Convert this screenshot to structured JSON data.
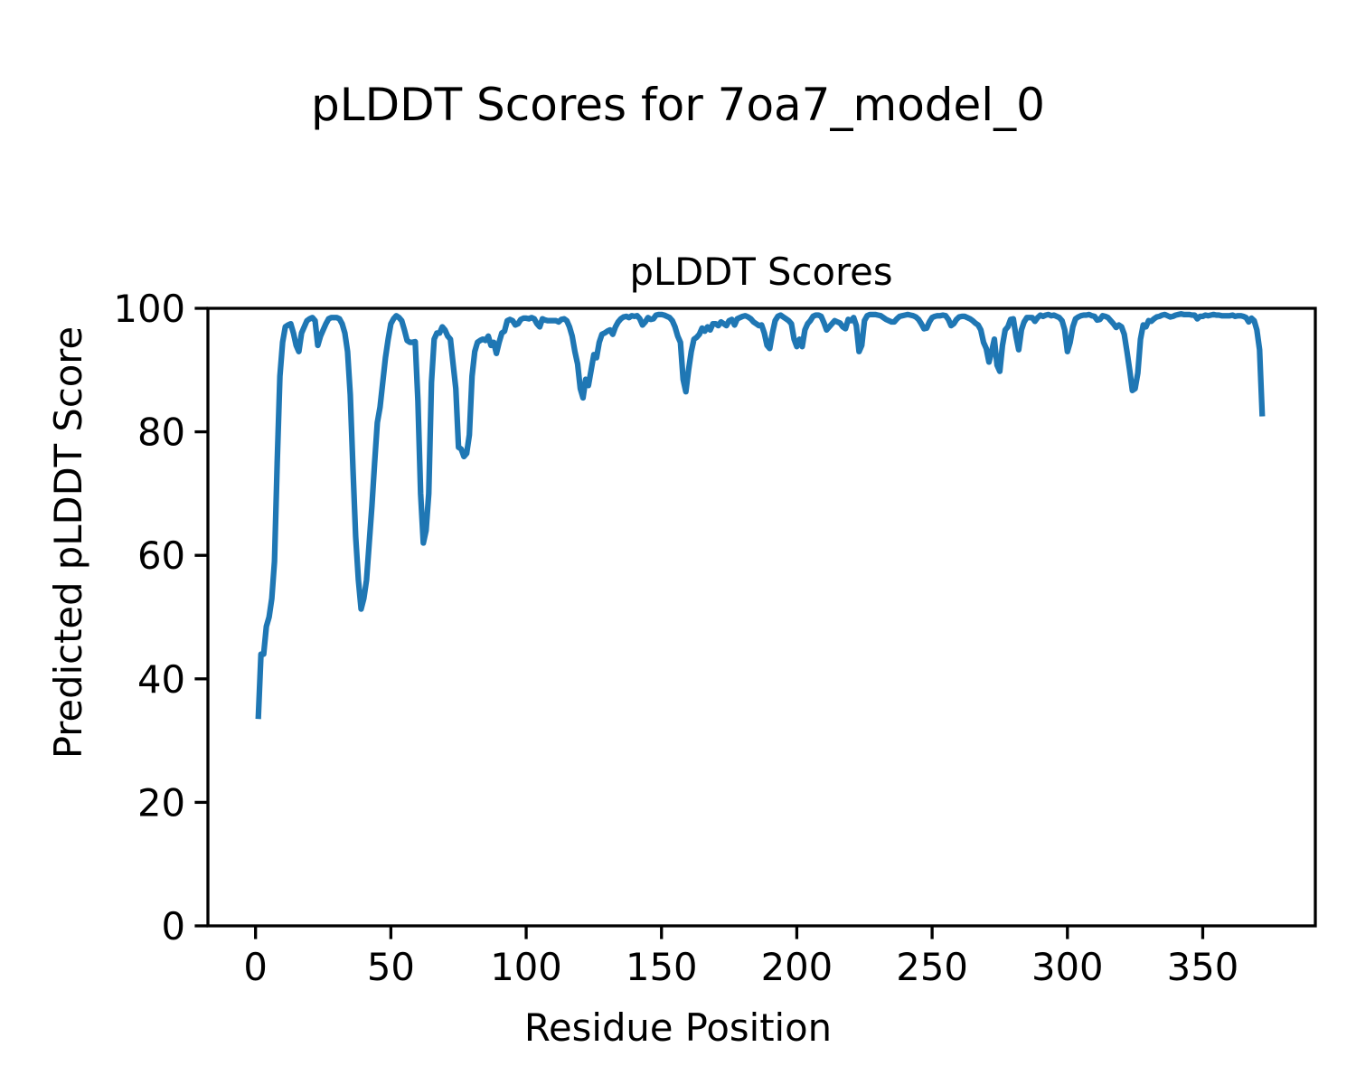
{
  "chart_data": {
    "type": "line",
    "suptitle": "pLDDT Scores for 7oa7_model_0",
    "title": "pLDDT Scores",
    "xlabel": "Residue Position",
    "ylabel": "Predicted pLDDT Score",
    "x_start": 1,
    "xlim": [
      -17.6,
      391.6
    ],
    "ylim": [
      0,
      100
    ],
    "xticks": [
      0,
      50,
      100,
      150,
      200,
      250,
      300,
      350
    ],
    "yticks": [
      0,
      20,
      40,
      60,
      80,
      100
    ],
    "grid": false,
    "color": "#1f77b4",
    "series": [
      {
        "name": "pLDDT",
        "values": [
          33.5,
          44,
          44,
          48.5,
          50,
          53,
          59,
          75,
          89,
          94.5,
          97,
          97.3,
          97.5,
          96,
          94,
          93,
          96,
          97,
          98,
          98.3,
          98.5,
          98,
          94,
          95.5,
          96.5,
          97.5,
          98.3,
          98.5,
          98.5,
          98.5,
          98.3,
          97.5,
          96,
          93,
          86,
          74,
          63,
          56,
          51.3,
          53,
          56,
          62,
          68,
          75,
          81.5,
          84,
          88,
          92,
          95,
          97.5,
          98.3,
          98.8,
          98.5,
          98,
          96.5,
          94.8,
          94.5,
          94.5,
          94.6,
          85,
          70,
          62,
          64,
          70,
          88,
          95,
          96,
          96,
          97,
          96.5,
          95.5,
          95,
          91,
          87,
          77.5,
          77.2,
          76,
          76.5,
          79.5,
          89,
          93,
          94.5,
          94.8,
          95,
          94.8,
          95.5,
          94,
          94.5,
          92.7,
          94.5,
          96,
          96.3,
          98,
          98.2,
          98,
          97.3,
          97.5,
          98.2,
          98.4,
          98.4,
          98.3,
          98.5,
          98.3,
          97.5,
          97,
          98.3,
          98.1,
          98,
          98,
          98,
          98,
          97.8,
          98.2,
          98.3,
          98,
          97,
          95.5,
          93,
          91,
          87,
          85.5,
          88.5,
          87.5,
          90,
          92.5,
          92,
          94.5,
          95.8,
          96,
          96.3,
          96.5,
          95.8,
          97,
          97.8,
          98.3,
          98.6,
          98.7,
          98.5,
          98.8,
          98.7,
          98.8,
          98.3,
          97.3,
          97.8,
          98.5,
          98.2,
          98.3,
          98.9,
          99,
          99,
          98.9,
          98.7,
          98.5,
          98,
          97,
          95.5,
          94.5,
          88.5,
          86.5,
          90,
          93,
          95,
          95.3,
          95.8,
          96.8,
          96.3,
          97,
          96.5,
          97.5,
          97.5,
          97.2,
          97.8,
          97.5,
          97.2,
          98,
          98.2,
          97.3,
          98.3,
          98.5,
          98.7,
          98.8,
          98.6,
          98.3,
          97.8,
          97.5,
          97.2,
          97.3,
          96,
          94,
          93.5,
          96,
          98,
          98.7,
          98.9,
          98.6,
          98.3,
          98,
          97.5,
          95,
          93.8,
          95,
          93.8,
          96.5,
          97.5,
          98,
          98.7,
          98.9,
          98.9,
          98.7,
          97.7,
          96.5,
          97,
          97.5,
          98,
          97.8,
          97.6,
          97,
          96.7,
          98.2,
          98,
          98.5,
          97.2,
          93,
          94,
          98,
          98.8,
          99,
          99,
          99,
          98.9,
          98.8,
          98.5,
          98.2,
          98,
          97.8,
          97.8,
          98.3,
          98.7,
          98.8,
          98.9,
          99,
          98.9,
          98.8,
          98.6,
          98.2,
          97.5,
          96.7,
          96.8,
          97.8,
          98.5,
          98.7,
          98.8,
          98.8,
          98.9,
          98.8,
          98.2,
          97.2,
          97.5,
          98.2,
          98.6,
          98.7,
          98.7,
          98.5,
          98.3,
          98,
          97.6,
          97.3,
          96.5,
          94.5,
          93.5,
          91.3,
          93,
          95,
          90.8,
          89.8,
          94,
          96.5,
          97,
          98.2,
          98.3,
          95.5,
          93.3,
          96.5,
          97.8,
          98.5,
          98.5,
          98.5,
          97.9,
          98.5,
          98.9,
          98.7,
          98.9,
          99,
          98.8,
          98.9,
          98.7,
          98.5,
          98,
          96.5,
          93,
          94.5,
          97,
          98.3,
          98.6,
          98.8,
          98.9,
          98.9,
          99,
          98.8,
          98.7,
          98.1,
          98.2,
          98.8,
          98.7,
          98.5,
          98,
          97.5,
          96.9,
          97.3,
          97,
          95.8,
          93,
          90,
          86.7,
          87,
          89.5,
          95,
          97.3,
          97,
          98,
          97.9,
          98.3,
          98.6,
          98.7,
          98.9,
          99,
          98.8,
          98.6,
          98.7,
          98.9,
          99,
          99.1,
          99,
          99,
          99,
          98.9,
          98.9,
          98.3,
          98.7,
          98.7,
          98.9,
          98.8,
          98.9,
          99,
          98.9,
          98.9,
          98.8,
          98.8,
          98.8,
          98.8,
          98.9,
          98.7,
          98.8,
          98.8,
          98.7,
          98.5,
          97.8,
          98.4,
          98,
          96.5,
          93.3,
          82.5
        ]
      }
    ]
  }
}
